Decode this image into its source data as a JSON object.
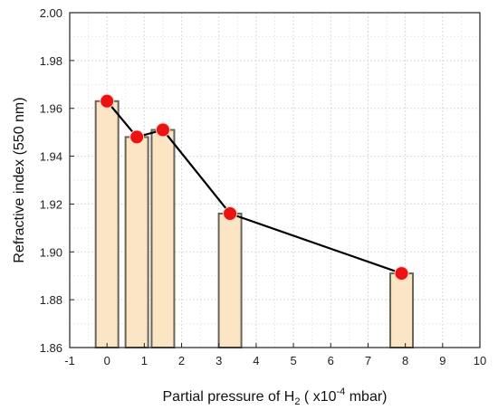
{
  "chart_data": {
    "type": "bar",
    "x": [
      0,
      0.8,
      1.5,
      3.3,
      7.9
    ],
    "values": [
      1.963,
      1.948,
      1.951,
      1.916,
      1.891
    ],
    "xlabel_main": "Partial pressure of H",
    "xlabel_sub": "2",
    "xlabel_mid": " ( x10",
    "xlabel_sup": "-4",
    "xlabel_end": " mbar)",
    "ylabel": "Refractive index (550 nm)",
    "xlim": [
      -1,
      10
    ],
    "ylim": [
      1.86,
      2.0
    ],
    "xticks": [
      -1,
      0,
      1,
      2,
      3,
      4,
      5,
      6,
      7,
      8,
      9,
      10
    ],
    "yticks": [
      "1.86",
      "1.88",
      "1.90",
      "1.92",
      "1.94",
      "1.96",
      "1.98",
      "2.00"
    ],
    "grid": true,
    "overlay": "line with markers",
    "colors": {
      "bar_fill": "#fbe5c4",
      "bar_stroke": "#6b6458",
      "line": "#000000",
      "marker": "#ee1111",
      "grid": "#d9d9d9"
    }
  }
}
